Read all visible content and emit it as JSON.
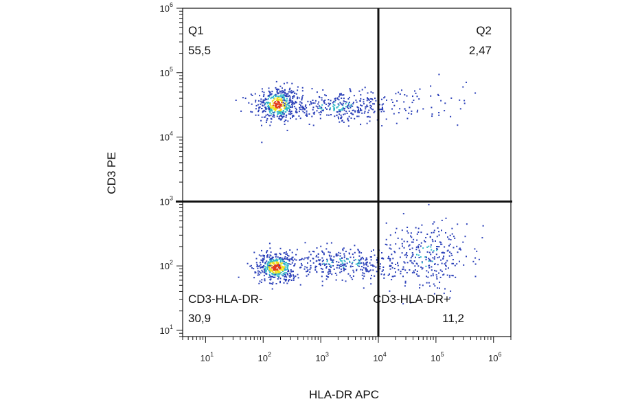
{
  "chart_data": {
    "type": "scatter",
    "subtype": "flow-cytometry-density-dot-plot",
    "xlabel": "HLA-DR APC",
    "ylabel": "CD3 PE",
    "x_scale": "log",
    "y_scale": "log",
    "xlim": [
      4,
      2000000
    ],
    "ylim": [
      8,
      1000000
    ],
    "x_ticks": [
      {
        "base": "10",
        "exp": "1",
        "value": 10
      },
      {
        "base": "10",
        "exp": "2",
        "value": 100
      },
      {
        "base": "10",
        "exp": "3",
        "value": 1000
      },
      {
        "base": "10",
        "exp": "4",
        "value": 10000
      },
      {
        "base": "10",
        "exp": "5",
        "value": 100000
      },
      {
        "base": "10",
        "exp": "6",
        "value": 1000000
      }
    ],
    "y_ticks": [
      {
        "base": "10",
        "exp": "1",
        "value": 10
      },
      {
        "base": "10",
        "exp": "2",
        "value": 100
      },
      {
        "base": "10",
        "exp": "3",
        "value": 1000
      },
      {
        "base": "10",
        "exp": "4",
        "value": 10000
      },
      {
        "base": "10",
        "exp": "5",
        "value": 100000
      },
      {
        "base": "10",
        "exp": "6",
        "value": 1000000
      }
    ],
    "gates": {
      "x_threshold": 10000,
      "y_threshold": 1000
    },
    "quadrants": [
      {
        "id": "Q1",
        "name": "Q1",
        "percent": "55,5",
        "position": "top-left"
      },
      {
        "id": "Q2",
        "name": "Q2",
        "percent": "2,47",
        "position": "top-right"
      },
      {
        "id": "Q3",
        "name": "CD3-HLA-DR+",
        "percent": "11,2",
        "position": "bottom-right"
      },
      {
        "id": "Q4",
        "name": "CD3-HLA-DR-",
        "percent": "30,9",
        "position": "bottom-left"
      }
    ],
    "populations": [
      {
        "x_center": 180,
        "y_center": 32000,
        "sx_decades": 0.18,
        "sy_decades": 0.14,
        "count": 420,
        "density": "high"
      },
      {
        "x_center": 1800,
        "y_center": 30000,
        "sx_decades": 0.55,
        "sy_decades": 0.12,
        "count": 360,
        "density": "medium"
      },
      {
        "x_center": 90000,
        "y_center": 30000,
        "sx_decades": 0.35,
        "sy_decades": 0.16,
        "count": 40,
        "density": "low"
      },
      {
        "x_center": 170,
        "y_center": 95,
        "sx_decades": 0.18,
        "sy_decades": 0.12,
        "count": 420,
        "density": "high"
      },
      {
        "x_center": 2500,
        "y_center": 110,
        "sx_decades": 0.6,
        "sy_decades": 0.12,
        "count": 380,
        "density": "medium"
      },
      {
        "x_center": 70000,
        "y_center": 140,
        "sx_decades": 0.35,
        "sy_decades": 0.28,
        "count": 260,
        "density": "medium"
      }
    ],
    "colors": {
      "axis": "#111111",
      "gate": "#111111",
      "density_low": "#2a3fb8",
      "density_mid": "#2fb8c8",
      "density_high_1": "#f2e11a",
      "density_high_2": "#e23a1a"
    }
  }
}
